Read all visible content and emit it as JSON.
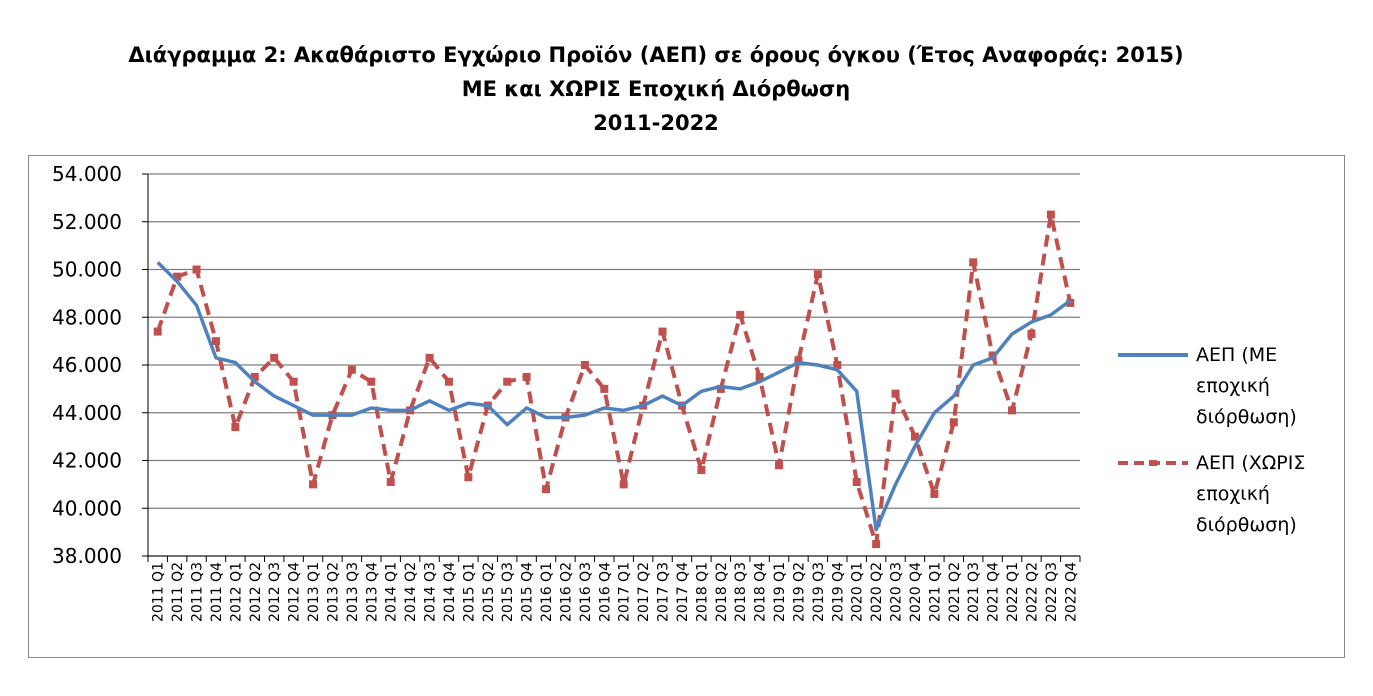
{
  "title": {
    "line1": "Διάγραμμα 2: Ακαθάριστο Εγχώριο Προϊόν (ΑΕΠ) σε όρους όγκου (Έτος Αναφοράς: 2015)",
    "line2": "ΜΕ και ΧΩΡΙΣ Εποχική Διόρθωση",
    "line3": "2011-2022"
  },
  "colors": {
    "with_adjustment": "#4F81BD",
    "without_adjustment": "#C0504D",
    "grid": "#7f7f7f"
  },
  "chart_data": {
    "type": "line",
    "ylim": [
      38000,
      54000
    ],
    "yticks": [
      38000,
      40000,
      42000,
      44000,
      46000,
      48000,
      50000,
      52000,
      54000
    ],
    "ytick_labels": [
      "38.000",
      "40.000",
      "42.000",
      "44.000",
      "46.000",
      "48.000",
      "50.000",
      "52.000",
      "54.000"
    ],
    "grid": true,
    "legend_position": "right",
    "categories": [
      "2011 Q1",
      "2011 Q2",
      "2011 Q3",
      "2011 Q4",
      "2012 Q1",
      "2012 Q2",
      "2012 Q3",
      "2012 Q4",
      "2013 Q1",
      "2013 Q2",
      "2013 Q3",
      "2013 Q4",
      "2014 Q1",
      "2014 Q2",
      "2014 Q3",
      "2014 Q4",
      "2015 Q1",
      "2015 Q2",
      "2015 Q3",
      "2015 Q4",
      "2016 Q1",
      "2016 Q2",
      "2016 Q3",
      "2016 Q4",
      "2017 Q1",
      "2017 Q2",
      "2017 Q3",
      "2017 Q4",
      "2018 Q1",
      "2018 Q2",
      "2018 Q3",
      "2018 Q4",
      "2019 Q1",
      "2019 Q2",
      "2019 Q3",
      "2019 Q4",
      "2020 Q1",
      "2020 Q2",
      "2020 Q3",
      "2020 Q4",
      "2021 Q1",
      "2021 Q2",
      "2021 Q3",
      "2021 Q4",
      "2022 Q1",
      "2022 Q2",
      "2022 Q3",
      "2022 Q4"
    ],
    "series": [
      {
        "name": "ΑΕΠ (ΜΕ εποχική διόρθωση)",
        "name_lines": [
          "ΑΕΠ (ΜΕ",
          "εποχική",
          "διόρθωση)"
        ],
        "style": "solid",
        "values": [
          50300,
          49500,
          48500,
          46300,
          46100,
          45300,
          44700,
          44300,
          43900,
          43900,
          43900,
          44200,
          44100,
          44100,
          44500,
          44100,
          44400,
          44300,
          43500,
          44200,
          43800,
          43800,
          43900,
          44200,
          44100,
          44300,
          44700,
          44300,
          44900,
          45100,
          45000,
          45300,
          45700,
          46100,
          46000,
          45800,
          44900,
          39100,
          41000,
          42600,
          44000,
          44700,
          46000,
          46300,
          47300,
          47800,
          48100,
          48700
        ]
      },
      {
        "name": "ΑΕΠ (ΧΩΡΙΣ εποχική διόρθωση)",
        "name_lines": [
          "ΑΕΠ (ΧΩΡΙΣ",
          "εποχική",
          "διόρθωση)"
        ],
        "style": "dashed",
        "values": [
          47400,
          49700,
          50000,
          47000,
          43400,
          45500,
          46300,
          45300,
          41000,
          43900,
          45800,
          45300,
          41100,
          44100,
          46300,
          45300,
          41300,
          44300,
          45300,
          45500,
          40800,
          43800,
          46000,
          45000,
          41000,
          44300,
          47400,
          44300,
          41600,
          45000,
          48100,
          45500,
          41800,
          46200,
          49800,
          46000,
          41100,
          38500,
          44800,
          43000,
          40600,
          43600,
          50300,
          46400,
          44100,
          47300,
          52300,
          48600
        ]
      }
    ]
  }
}
